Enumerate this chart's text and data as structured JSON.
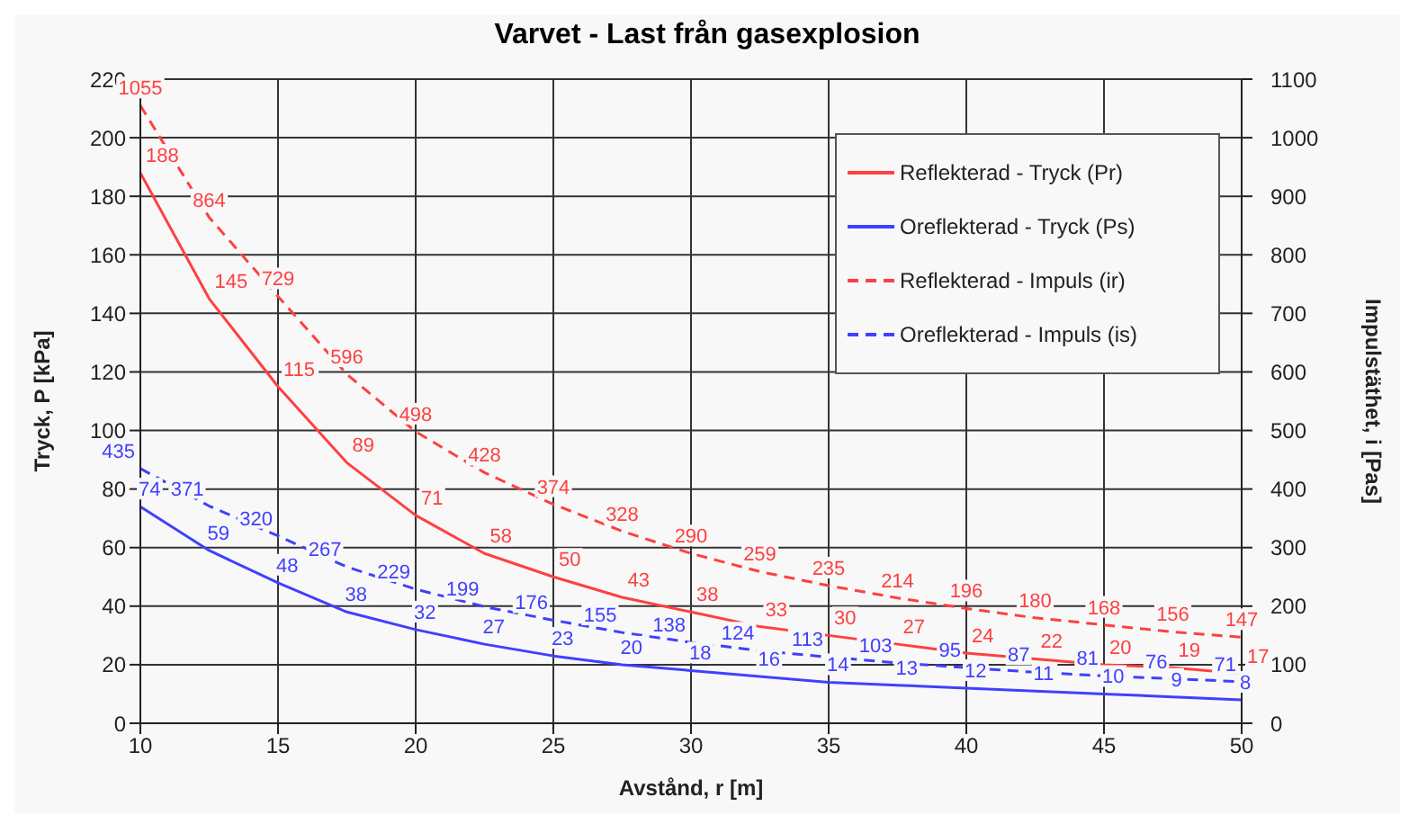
{
  "chart_data": {
    "type": "line",
    "title": "Varvet - Last från gasexplosion",
    "xlabel": "Avstånd, r [m]",
    "ylabel": "Tryck, P [kPa]",
    "y2label": "Impulstäthet, i [Pas]",
    "x": [
      10,
      12.5,
      15,
      17.5,
      20,
      22.5,
      25,
      27.5,
      30,
      32.5,
      35,
      37.5,
      40,
      42.5,
      45,
      47.5,
      50
    ],
    "xlim": [
      10,
      50
    ],
    "xticks": [
      10,
      15,
      20,
      25,
      30,
      35,
      40,
      45,
      50
    ],
    "ylim": [
      0,
      220
    ],
    "yticks": [
      0,
      20,
      40,
      60,
      80,
      100,
      120,
      140,
      160,
      180,
      200,
      220
    ],
    "y2lim": [
      0,
      1100
    ],
    "y2ticks": [
      0,
      100,
      200,
      300,
      400,
      500,
      600,
      700,
      800,
      900,
      1000,
      1100
    ],
    "grid": true,
    "legend": "top right",
    "marker": "none",
    "data_labels": true,
    "series": [
      {
        "name": "Reflekterad - Tryck (Pr)",
        "color": "#ff4040",
        "line_style": "solid",
        "values": [
          188,
          145,
          115,
          89,
          71,
          58,
          50,
          43,
          38,
          33,
          30,
          27,
          24,
          22,
          20,
          19,
          17
        ]
      },
      {
        "name": "Oreflekterad - Tryck (Ps)",
        "color": "#4040ff",
        "line_style": "solid",
        "values": [
          74,
          59,
          48,
          38,
          32,
          27,
          23,
          20,
          18,
          16,
          14,
          13,
          12,
          11,
          10,
          9,
          8
        ]
      },
      {
        "name": "Reflekterad - Impuls (ir)",
        "color": "#ff4040",
        "line_style": "dashed",
        "axis": "y2",
        "values": [
          1055,
          864,
          729,
          596,
          498,
          428,
          374,
          328,
          290,
          259,
          235,
          214,
          196,
          180,
          168,
          156,
          147
        ]
      },
      {
        "name": "Oreflekterad - Impuls (is)",
        "color": "#4040ff",
        "line_style": "dashed",
        "axis": "y2",
        "values": [
          435,
          371,
          320,
          267,
          229,
          199,
          176,
          155,
          138,
          124,
          113,
          103,
          95,
          87,
          81,
          76,
          71
        ]
      }
    ]
  }
}
